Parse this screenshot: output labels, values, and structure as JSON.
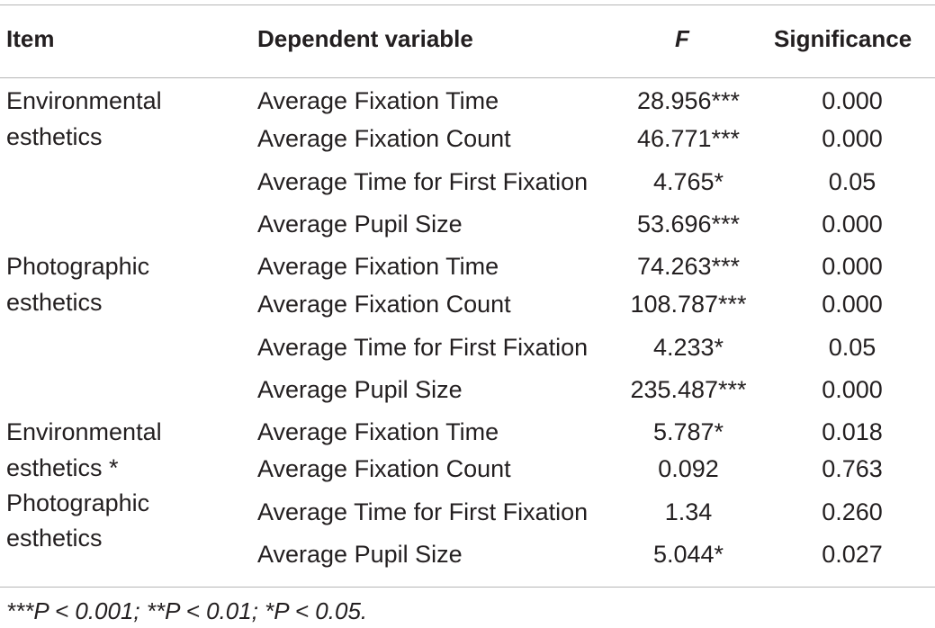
{
  "header": {
    "item": "Item",
    "dependent_variable": "Dependent variable",
    "f": "F",
    "significance": "Significance"
  },
  "groups": [
    {
      "item_lines": [
        "Environmental",
        "esthetics"
      ],
      "rows": [
        {
          "dependent": "Average Fixation Time",
          "f": "28.956***",
          "sig": "0.000"
        },
        {
          "dependent": "Average Fixation Count",
          "f": "46.771***",
          "sig": "0.000"
        },
        {
          "dependent": "Average Time for First Fixation",
          "f": "4.765*",
          "sig": "0.05"
        },
        {
          "dependent": "Average Pupil Size",
          "f": "53.696***",
          "sig": "0.000"
        }
      ]
    },
    {
      "item_lines": [
        "Photographic",
        "esthetics"
      ],
      "rows": [
        {
          "dependent": "Average Fixation Time",
          "f": "74.263***",
          "sig": "0.000"
        },
        {
          "dependent": "Average Fixation Count",
          "f": "108.787***",
          "sig": "0.000"
        },
        {
          "dependent": "Average Time for First Fixation",
          "f": "4.233*",
          "sig": "0.05"
        },
        {
          "dependent": "Average Pupil Size",
          "f": "235.487***",
          "sig": "0.000"
        }
      ]
    },
    {
      "item_lines": [
        "Environmental",
        "esthetics *",
        "Photographic",
        "esthetics"
      ],
      "rows": [
        {
          "dependent": "Average Fixation Time",
          "f": "5.787*",
          "sig": "0.018"
        },
        {
          "dependent": "Average Fixation Count",
          "f": "0.092",
          "sig": "0.763"
        },
        {
          "dependent": "Average Time for First Fixation",
          "f": "1.34",
          "sig": "0.260"
        },
        {
          "dependent": "Average Pupil Size",
          "f": "5.044*",
          "sig": "0.027"
        }
      ]
    }
  ],
  "footnote": "***P < 0.001; **P < 0.01; *P < 0.05."
}
